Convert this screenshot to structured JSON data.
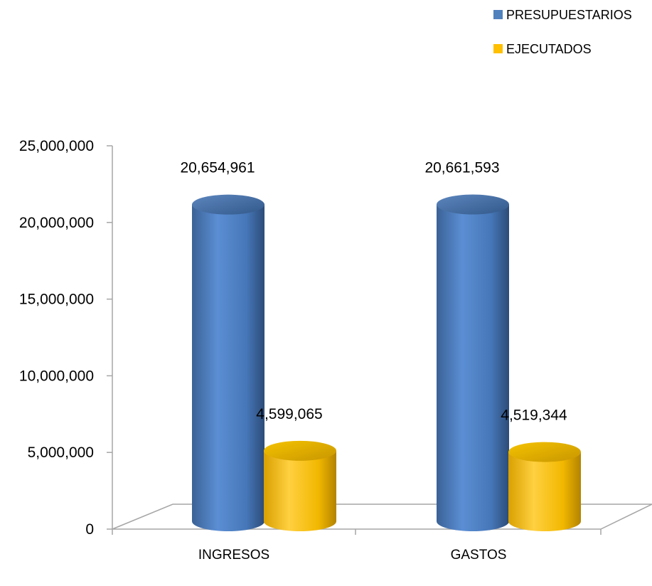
{
  "chart_data": {
    "type": "bar",
    "categories": [
      "INGRESOS",
      "GASTOS"
    ],
    "series": [
      {
        "name": "PRESUPUESTARIOS",
        "values": [
          20654961,
          20661593
        ],
        "labels": [
          "20,654,961",
          "20,661,593"
        ],
        "color": "#4F81BD"
      },
      {
        "name": "EJECUTADOS",
        "values": [
          4599065,
          4519344
        ],
        "labels": [
          "4,599,065",
          "4,519,344"
        ],
        "color": "#FFC000"
      }
    ],
    "ylim": [
      0,
      25000000
    ],
    "yticks": [
      "0",
      "5,000,000",
      "10,000,000",
      "15,000,000",
      "20,000,000",
      "25,000,000"
    ],
    "ytick_values": [
      0,
      5000000,
      10000000,
      15000000,
      20000000,
      25000000
    ],
    "legend_position": "top-right",
    "style": "3d-cylinder"
  }
}
